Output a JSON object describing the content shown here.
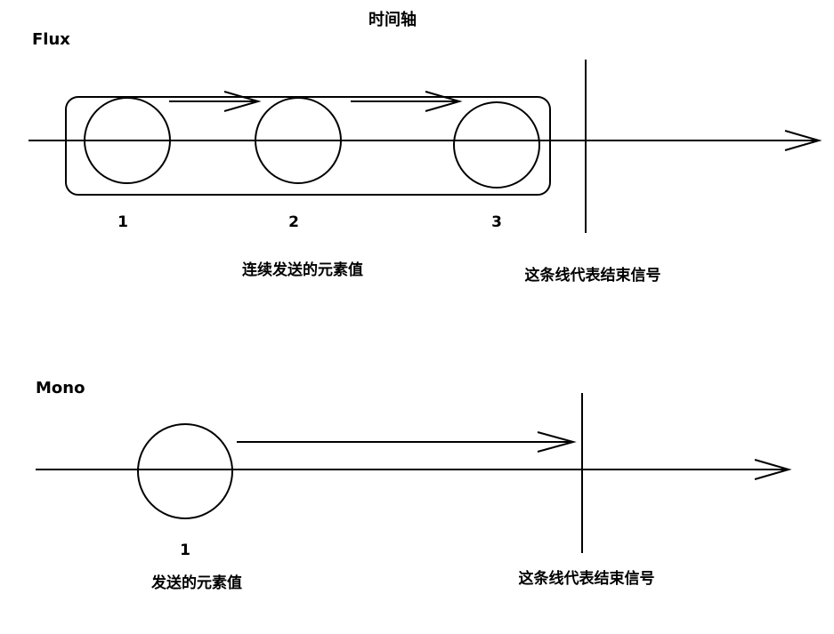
{
  "title": "时间轴",
  "colors": {
    "stroke": "#000000",
    "background": "#ffffff"
  },
  "flux": {
    "label": "Flux",
    "elements": [
      "1",
      "2",
      "3"
    ],
    "elements_caption": "连续发送的元素值",
    "end_caption": "这条线代表结束信号"
  },
  "mono": {
    "label": "Mono",
    "elements": [
      "1"
    ],
    "elements_caption": "发送的元素值",
    "end_caption": "这条线代表结束信号"
  }
}
